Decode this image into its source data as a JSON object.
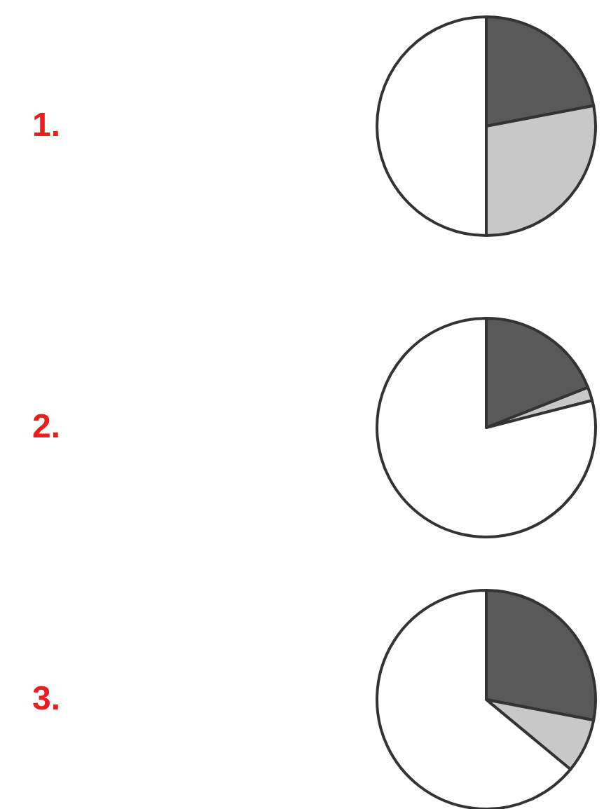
{
  "chart_data": [
    {
      "type": "pie",
      "title": "1.",
      "categories": [
        null,
        null,
        null
      ],
      "values": [
        22,
        28,
        50
      ],
      "colors": [
        "#595959",
        "#c8c8c8",
        "#ffffff"
      ]
    },
    {
      "type": "pie",
      "title": "2.",
      "categories": [
        null,
        null,
        null
      ],
      "values": [
        19,
        2,
        79
      ],
      "colors": [
        "#595959",
        "#c8c8c8",
        "#ffffff"
      ]
    },
    {
      "type": "pie",
      "title": "3.",
      "categories": [
        null,
        null,
        null
      ],
      "values": [
        28,
        8,
        64
      ],
      "colors": [
        "#595959",
        "#c8c8c8",
        "#ffffff"
      ]
    }
  ]
}
